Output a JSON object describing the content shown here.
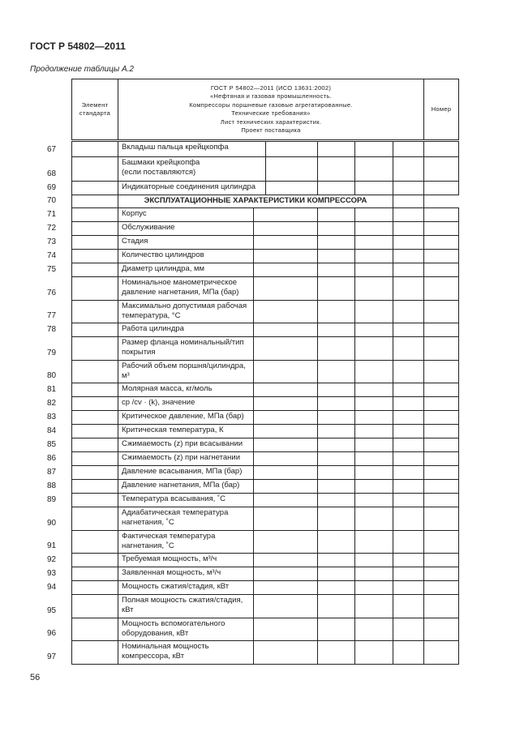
{
  "header": {
    "standard": "ГОСТ Р 54802—2011",
    "continuation": "Продолжение таблицы А.2",
    "page_number": "56"
  },
  "table_header": {
    "element": "Элемент стандарта",
    "title_lines": [
      "ГОСТ Р 54802—2011 (ИСО 13631:2002)",
      "«Нефтяная и газовая промышленность.",
      "Компрессоры поршневые газовые агрегатированные.",
      "Технические требования»",
      "Лист технических характеристик.",
      "Проект поставщика"
    ],
    "number": "Номер"
  },
  "rows_a": [
    {
      "n": "67",
      "label": "Вкладыш пальца крейцкопфа",
      "h": 20
    },
    {
      "n": "68",
      "label": "Башмаки крейцкопфа\n(если поставляются)",
      "h": 30
    },
    {
      "n": "69",
      "label": "Индикаторные соединения  цилиндра",
      "h": 17
    }
  ],
  "section": {
    "n": "70",
    "label": "ЭКСПЛУАТАЦИОННЫЕ ХАРАКТЕРИСТИКИ КОМПРЕССОРА"
  },
  "rows_b": [
    {
      "n": "71",
      "label": "Корпус"
    },
    {
      "n": "72",
      "label": "Обслуживание"
    },
    {
      "n": "73",
      "label": "Стадия"
    },
    {
      "n": "74",
      "label": "Количество цилиндров"
    },
    {
      "n": "75",
      "label": "Диаметр цилиндра, мм"
    },
    {
      "n": "76",
      "label": "Номинальное манометрическое давление нагнетания, МПа (бар)",
      "d": true
    },
    {
      "n": "77",
      "label": "Максимально допустимая рабочая температура, °С",
      "d": true
    },
    {
      "n": "78",
      "label": "Работа цилиндра"
    },
    {
      "n": "79",
      "label": "Размер фланца номинальный/тип покрытия",
      "d": true
    },
    {
      "n": "80",
      "label": "Рабочий объем поршня/цилиндра, м³",
      "d": true
    },
    {
      "n": "81",
      "label": "Молярная масса, кг/моль"
    },
    {
      "n": "82",
      "label": "cp /cv · (k), значение"
    },
    {
      "n": "83",
      "label": "Критическое давление, МПа (бар)"
    },
    {
      "n": "84",
      "label": "Критическая температура, К"
    },
    {
      "n": "85",
      "label": "Сжимаемость (z) при всасывании"
    },
    {
      "n": "86",
      "label": "Сжимаемость (z) при нагнетании"
    },
    {
      "n": "87",
      "label": "Давление всасывания, МПа (бар)"
    },
    {
      "n": "88",
      "label": "Давление нагнетания, МПа (бар)"
    },
    {
      "n": "89",
      "label": "Температура всасывания, ˚С"
    },
    {
      "n": "90",
      "label": "Адиабатическая температура нагнетания, ˚С",
      "d": true
    },
    {
      "n": "91",
      "label": "Фактическая температура нагнетания, ˚С",
      "d": true
    },
    {
      "n": "92",
      "label": "Требуемая мощность, м³/ч"
    },
    {
      "n": "93",
      "label": "Заявленная мощность, м³/ч"
    },
    {
      "n": "94",
      "label": "Мощность сжатия/стадия, кВт"
    },
    {
      "n": "95",
      "label": "Полная мощность сжатия/стадия, кВт",
      "d": true
    },
    {
      "n": "96",
      "label": "Мощность вспомогательного оборудования, кВт",
      "d": true
    },
    {
      "n": "97",
      "label": "Номинальная мощность компрессора, кВт",
      "d": true
    }
  ]
}
